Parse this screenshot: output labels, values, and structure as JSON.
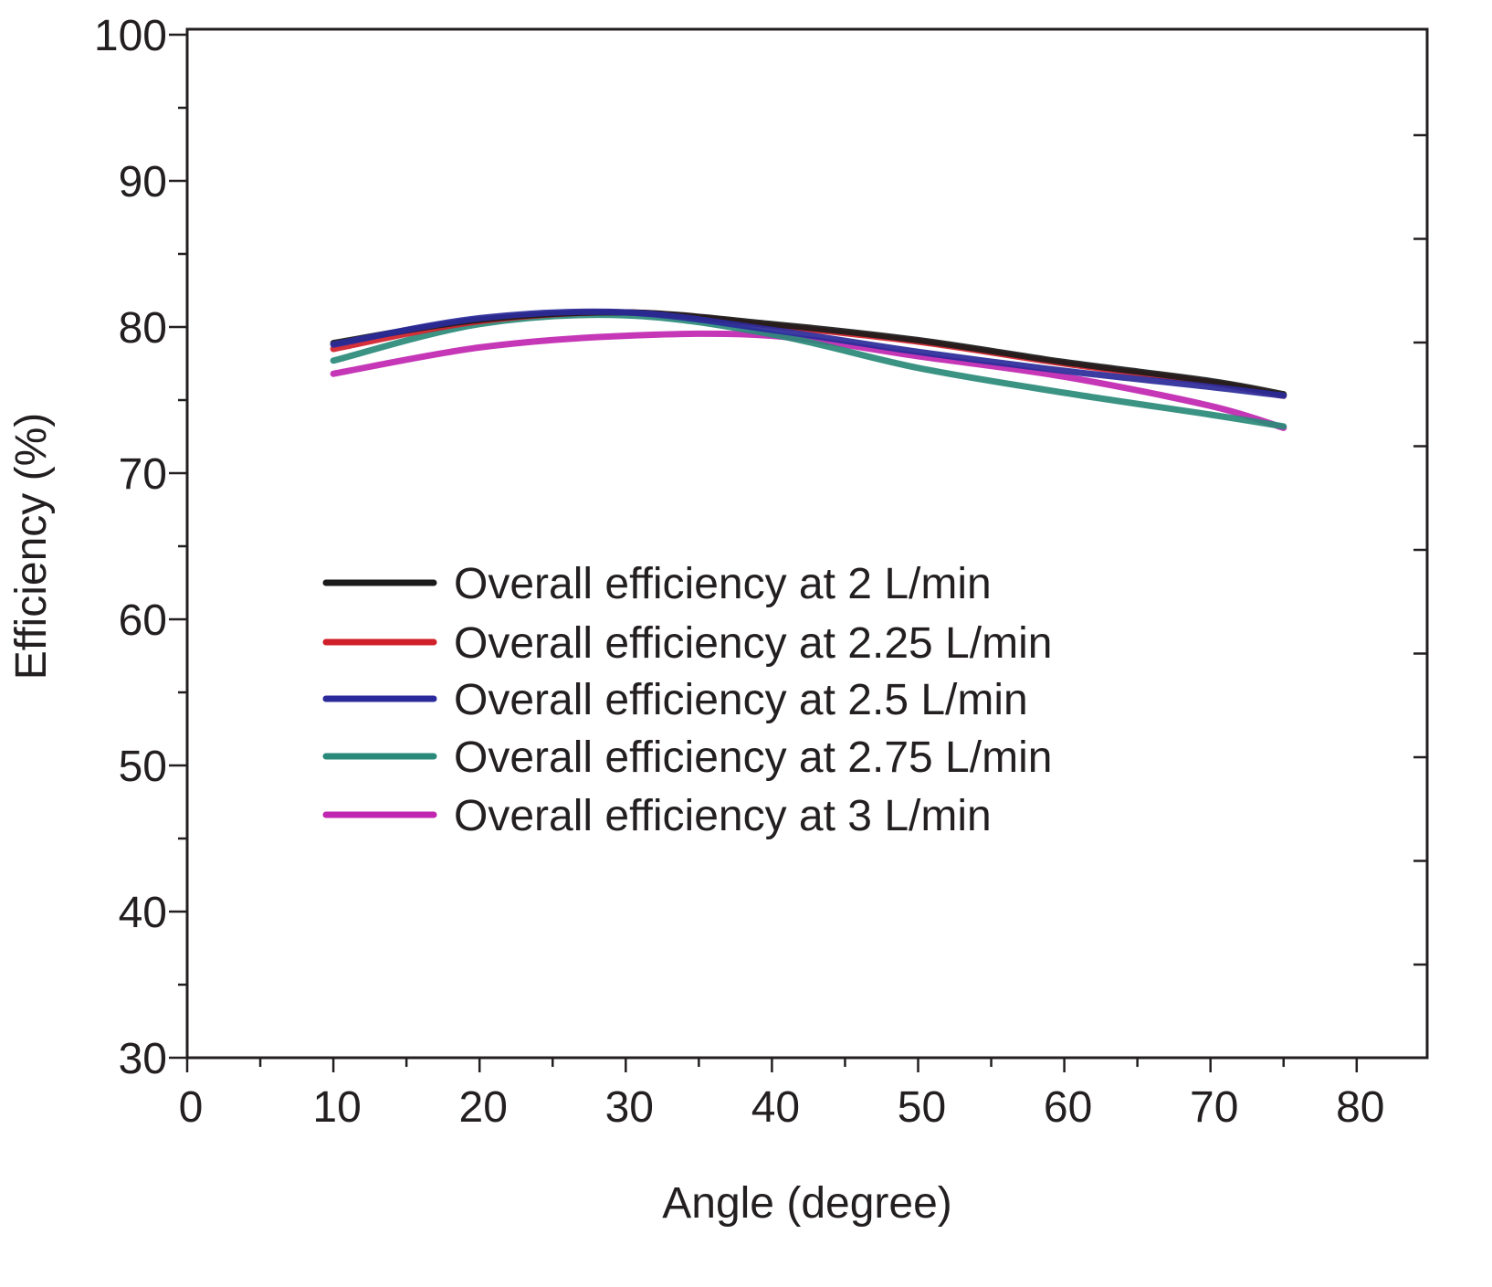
{
  "chart_data": {
    "type": "line",
    "title": "",
    "xlabel": "Angle (degree)",
    "ylabel": "Efficiency (%)",
    "xlim": [
      0,
      85
    ],
    "ylim": [
      30,
      100
    ],
    "xticks": [
      0,
      10,
      20,
      30,
      40,
      50,
      60,
      70,
      80
    ],
    "yticks": [
      30,
      40,
      50,
      60,
      70,
      80,
      90,
      100
    ],
    "grid": false,
    "legend_position": "center-left",
    "x": [
      10,
      20,
      30,
      40,
      50,
      60,
      70,
      75
    ],
    "series": [
      {
        "name": "Overall efficiency at 2 L/min",
        "color": "#1a1a1a",
        "values": [
          78.9,
          80.5,
          81.0,
          80.2,
          79.1,
          77.6,
          76.3,
          75.4
        ]
      },
      {
        "name": "Overall efficiency at 2.25 L/min",
        "color": "#d0202a",
        "values": [
          78.5,
          80.4,
          81.0,
          80.1,
          79.0,
          77.5,
          76.2,
          75.3
        ]
      },
      {
        "name": "Overall efficiency at 2.5 L/min",
        "color": "#2a2a9a",
        "values": [
          78.8,
          80.6,
          81.0,
          79.8,
          78.3,
          77.0,
          75.9,
          75.3
        ]
      },
      {
        "name": "Overall efficiency at 2.75 L/min",
        "color": "#2a8a7a",
        "values": [
          77.7,
          80.2,
          80.8,
          79.5,
          77.2,
          75.5,
          74.0,
          73.2
        ]
      },
      {
        "name": "Overall efficiency at 3 L/min",
        "color": "#c026b0",
        "values": [
          76.8,
          78.6,
          79.4,
          79.4,
          78.0,
          76.6,
          74.6,
          73.1
        ]
      }
    ]
  }
}
